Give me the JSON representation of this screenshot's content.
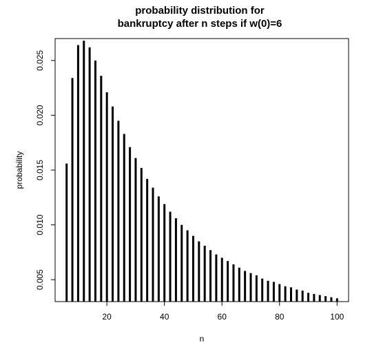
{
  "chart_data": {
    "type": "bar",
    "title_line1": "probability distribution for",
    "title_line2": "bankruptcy after n steps if w(0)=6",
    "xlabel": "n",
    "ylabel": "probability",
    "xlim": [
      2,
      104
    ],
    "ylim": [
      0.003,
      0.027
    ],
    "x_ticks": [
      20,
      40,
      60,
      80,
      100
    ],
    "x_tick_labels": [
      "20",
      "40",
      "60",
      "80",
      "100"
    ],
    "y_ticks": [
      0.005,
      0.01,
      0.015,
      0.02,
      0.025
    ],
    "y_tick_labels": [
      "0.005",
      "0.010",
      "0.015",
      "0.020",
      "0.025"
    ],
    "x": [
      6,
      8,
      10,
      12,
      14,
      16,
      18,
      20,
      22,
      24,
      26,
      28,
      30,
      32,
      34,
      36,
      38,
      40,
      42,
      44,
      46,
      48,
      50,
      52,
      54,
      56,
      58,
      60,
      62,
      64,
      66,
      68,
      70,
      72,
      74,
      76,
      78,
      80,
      82,
      84,
      86,
      88,
      90,
      92,
      94,
      96,
      98,
      100
    ],
    "values": [
      0.0156,
      0.0234,
      0.0264,
      0.0268,
      0.0262,
      0.025,
      0.0236,
      0.0221,
      0.0208,
      0.0195,
      0.0183,
      0.0171,
      0.0161,
      0.0152,
      0.0142,
      0.0134,
      0.0126,
      0.0119,
      0.0112,
      0.0106,
      0.01,
      0.0095,
      0.009,
      0.0085,
      0.0081,
      0.0077,
      0.0073,
      0.007,
      0.0067,
      0.0064,
      0.0061,
      0.0058,
      0.0056,
      0.0054,
      0.0051,
      0.0049,
      0.0048,
      0.0046,
      0.0044,
      0.0043,
      0.0041,
      0.004,
      0.0038,
      0.0037,
      0.0036,
      0.0035,
      0.0034,
      0.0033
    ],
    "grid": false,
    "color": "#000000"
  }
}
